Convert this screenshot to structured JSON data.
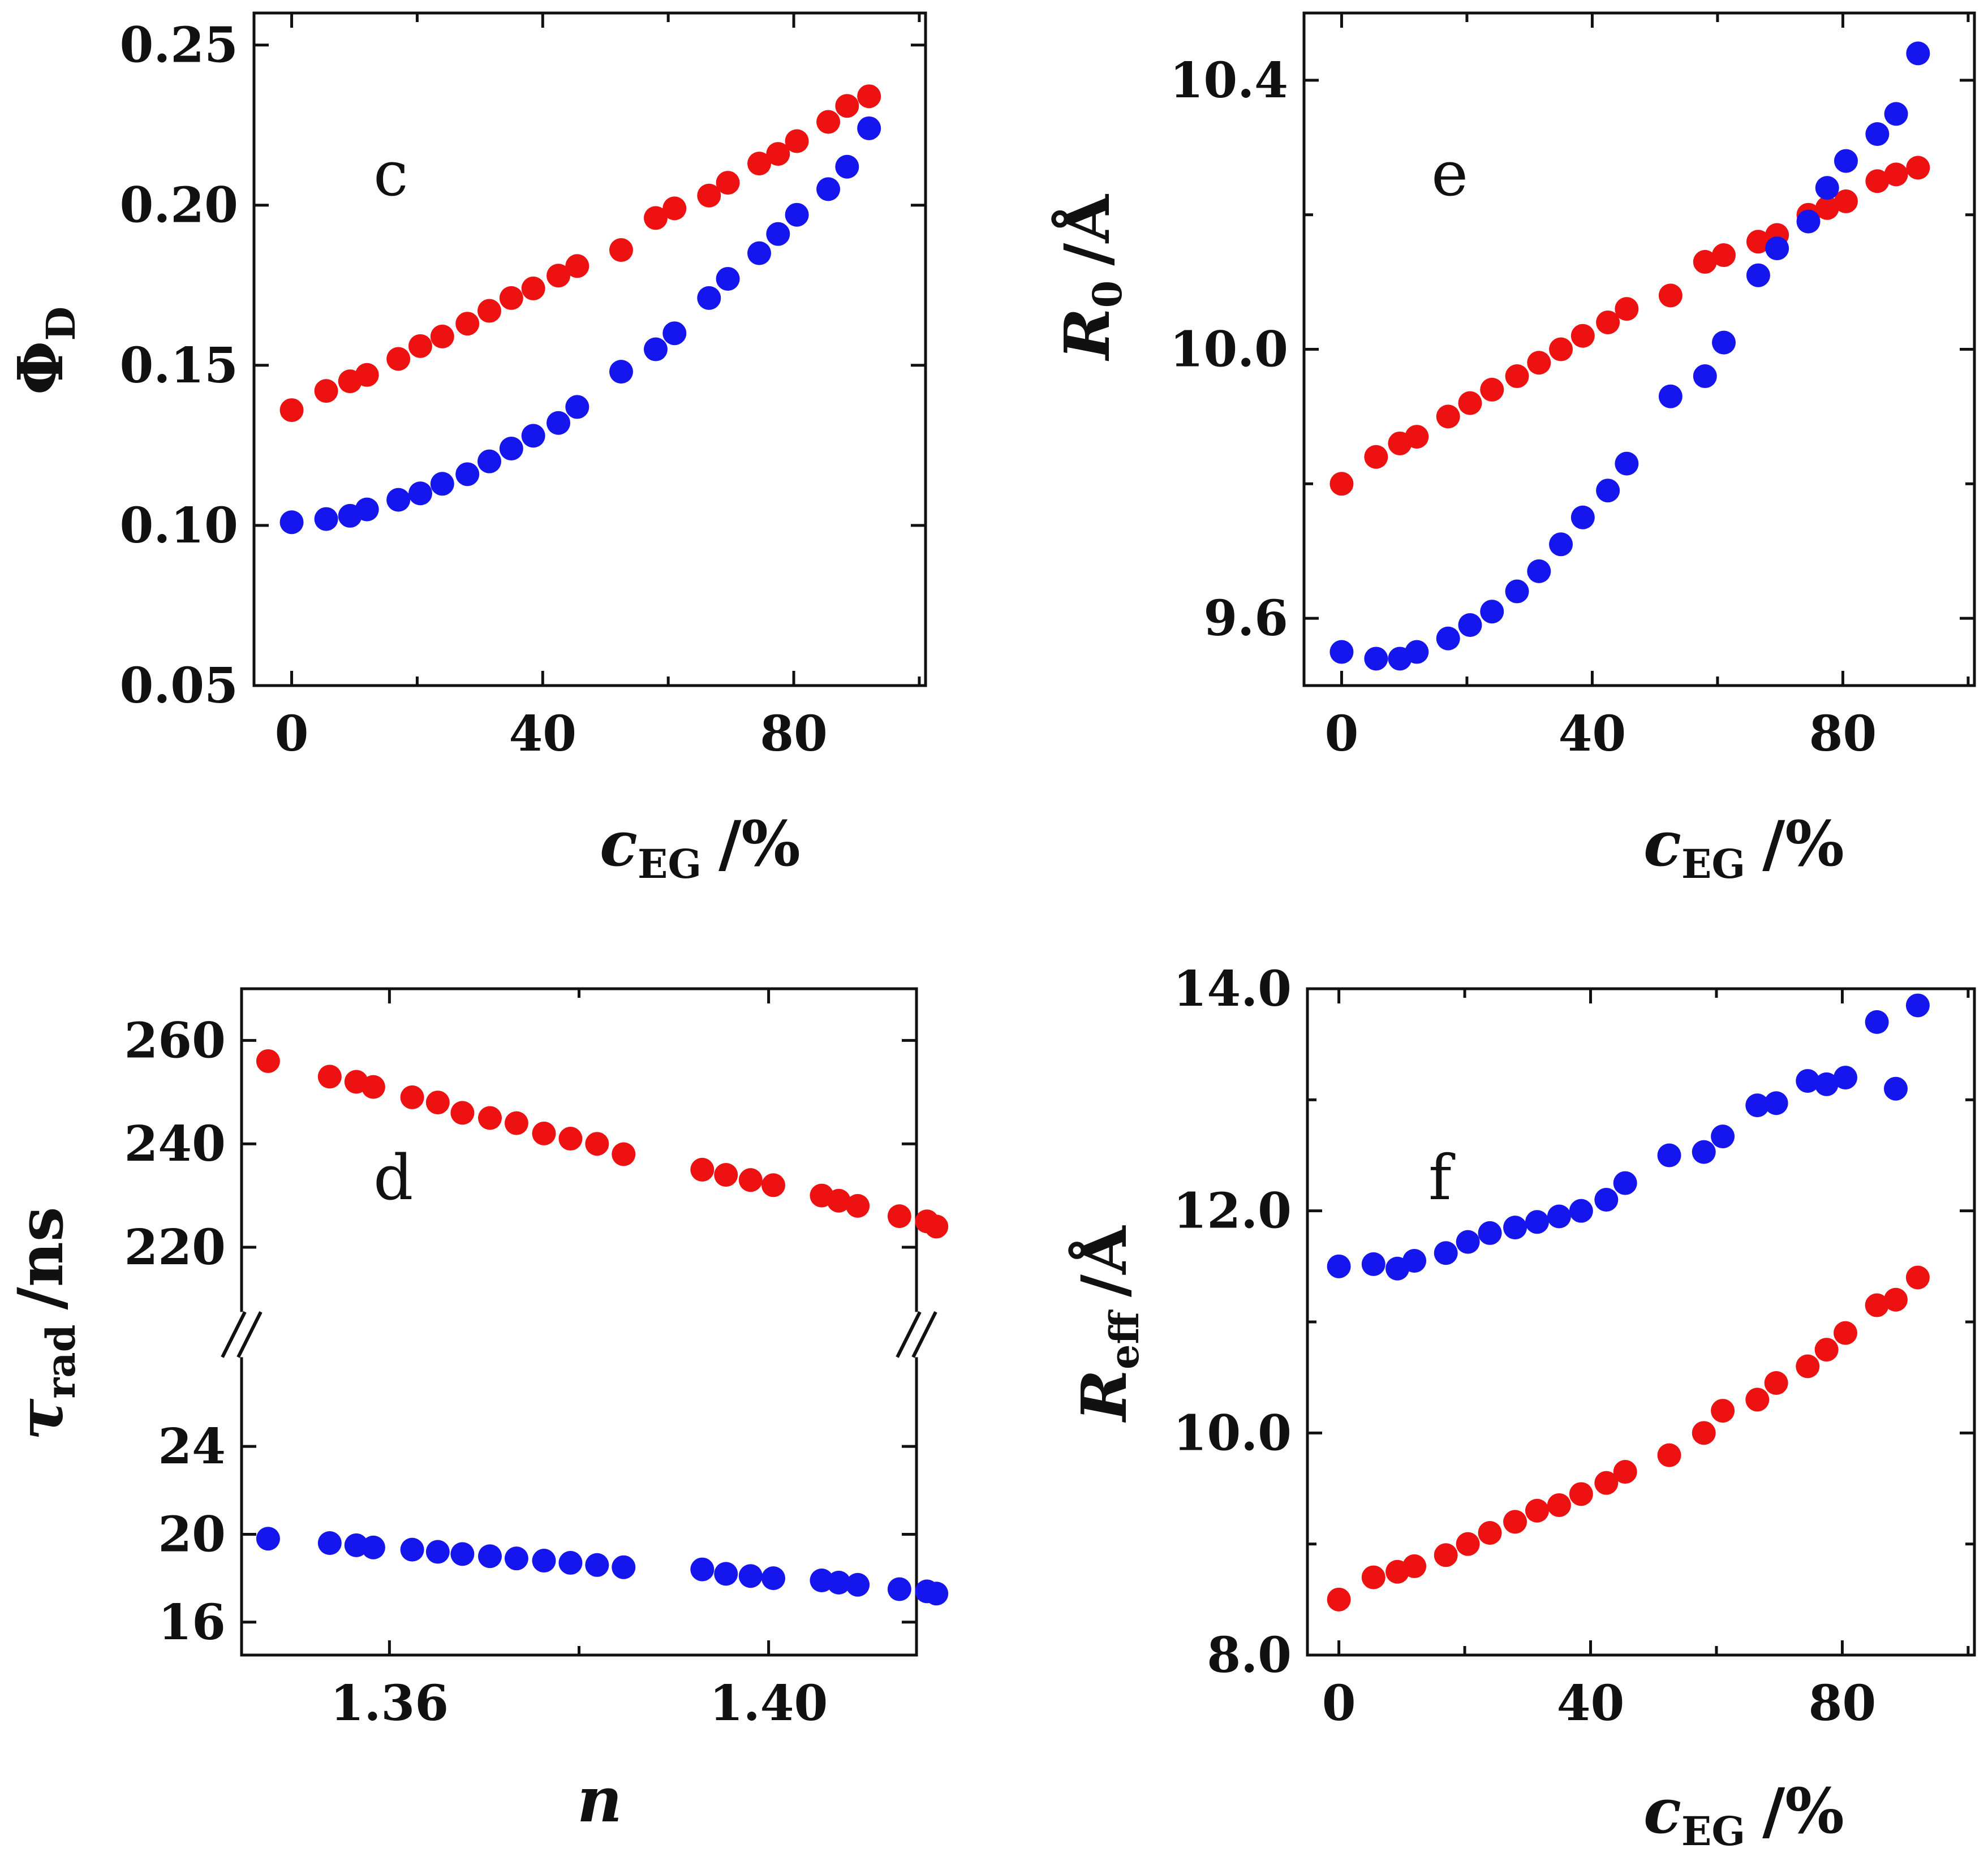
{
  "colors": {
    "series_red": "#ee1111",
    "series_blue": "#1515ee",
    "axis": "#111111"
  },
  "chart_data": [
    {
      "id": "c",
      "type": "scatter",
      "panel_label": "c",
      "xlabel": {
        "main": "c",
        "sub": "EG",
        "unit": "/%"
      },
      "ylabel": {
        "main": "Φ",
        "sub": "D",
        "unit": ""
      },
      "xlim": [
        -6,
        101
      ],
      "ylim": [
        0.05,
        0.26
      ],
      "xticks": [
        0,
        40,
        80
      ],
      "xtick_labels": [
        "0",
        "40",
        "80"
      ],
      "yticks": [
        0.05,
        0.1,
        0.15,
        0.2,
        0.25
      ],
      "ytick_labels": [
        "0.05",
        "0.10",
        "0.15",
        "0.20",
        "0.25"
      ],
      "series": [
        {
          "name": "red",
          "color": "#ee1111",
          "x": [
            0,
            5.5,
            9.3,
            12,
            17,
            20.5,
            24,
            28,
            31.5,
            35,
            38.5,
            42.5,
            45.5,
            52.5,
            58,
            61,
            66.5,
            69.5,
            74.5,
            77.5,
            80.5,
            85.5,
            88.5,
            92
          ],
          "y": [
            0.136,
            0.142,
            0.145,
            0.147,
            0.152,
            0.156,
            0.159,
            0.163,
            0.167,
            0.171,
            0.174,
            0.178,
            0.181,
            0.186,
            0.196,
            0.199,
            0.203,
            0.207,
            0.213,
            0.216,
            0.22,
            0.226,
            0.231,
            0.234
          ]
        },
        {
          "name": "blue",
          "color": "#1515ee",
          "x": [
            0,
            5.5,
            9.3,
            12,
            17,
            20.5,
            24,
            28,
            31.5,
            35,
            38.5,
            42.5,
            45.5,
            52.5,
            58,
            61,
            66.5,
            69.5,
            74.5,
            77.5,
            80.5,
            85.5,
            88.5,
            92
          ],
          "y": [
            0.101,
            0.102,
            0.103,
            0.105,
            0.108,
            0.11,
            0.113,
            0.116,
            0.12,
            0.124,
            0.128,
            0.132,
            0.137,
            0.148,
            0.155,
            0.16,
            0.171,
            0.177,
            0.185,
            0.191,
            0.197,
            0.205,
            0.212,
            0.224
          ]
        }
      ]
    },
    {
      "id": "e",
      "type": "scatter",
      "panel_label": "e",
      "xlabel": {
        "main": "c",
        "sub": "EG",
        "unit": "/%"
      },
      "ylabel": {
        "main": "R",
        "sub": "0",
        "unit": "/Å"
      },
      "xlim": [
        -6,
        101
      ],
      "ylim": [
        9.5,
        10.5
      ],
      "xticks": [
        0,
        40,
        80
      ],
      "xtick_labels": [
        "0",
        "40",
        "80"
      ],
      "yticks": [
        9.6,
        10.0,
        10.4
      ],
      "ytick_labels": [
        "9.6",
        "10.0",
        "10.4"
      ],
      "minor_yticks": [
        9.8,
        10.2
      ],
      "series": [
        {
          "name": "red",
          "color": "#ee1111",
          "x": [
            0,
            5.5,
            9.3,
            12,
            17,
            20.5,
            24,
            28,
            31.5,
            35,
            38.5,
            42.5,
            45.5,
            52.5,
            58,
            61,
            66.5,
            69.5,
            74.5,
            77.5,
            80.5,
            85.5,
            88.5,
            92
          ],
          "y": [
            9.8,
            9.84,
            9.86,
            9.87,
            9.9,
            9.92,
            9.94,
            9.96,
            9.98,
            10.0,
            10.02,
            10.04,
            10.06,
            10.08,
            10.13,
            10.14,
            10.16,
            10.17,
            10.2,
            10.21,
            10.22,
            10.25,
            10.26,
            10.27
          ]
        },
        {
          "name": "blue",
          "color": "#1515ee",
          "x": [
            0,
            5.5,
            9.3,
            12,
            17,
            20.5,
            24,
            28,
            31.5,
            35,
            38.5,
            42.5,
            45.5,
            52.5,
            58,
            61,
            66.5,
            69.5,
            74.5,
            77.5,
            80.5,
            85.5,
            88.5,
            92
          ],
          "y": [
            9.55,
            9.54,
            9.54,
            9.55,
            9.57,
            9.59,
            9.61,
            9.64,
            9.67,
            9.71,
            9.75,
            9.79,
            9.83,
            9.93,
            9.96,
            10.01,
            10.11,
            10.15,
            10.19,
            10.24,
            10.28,
            10.32,
            10.35,
            10.44
          ]
        }
      ]
    },
    {
      "id": "d",
      "type": "scatter",
      "panel_label": "d",
      "xlabel": {
        "main": "n",
        "sub": "",
        "unit": ""
      },
      "ylabel": {
        "main": "τ",
        "sub": "rad",
        "unit": "/ns"
      },
      "xlim": [
        1.3444,
        1.4156
      ],
      "ylim": [
        14.5,
        270
      ],
      "axis_break": {
        "lower_range": [
          14.5,
          27.0
        ],
        "upper_range": [
          212.0,
          270.0
        ],
        "symbol": "//"
      },
      "xticks": [
        1.36,
        1.4
      ],
      "xtick_labels": [
        "1.36",
        "1.40"
      ],
      "minor_xticks": [
        1.38
      ],
      "yticks": [
        16,
        20,
        24,
        220,
        240,
        260
      ],
      "ytick_labels": [
        "16",
        "20",
        "24",
        "220",
        "240",
        "260"
      ],
      "series": [
        {
          "name": "red",
          "color": "#ee1111",
          "x": [
            1.3472,
            1.3537,
            1.3565,
            1.3583,
            1.3624,
            1.3651,
            1.3677,
            1.3706,
            1.3734,
            1.3763,
            1.3791,
            1.3819,
            1.3847,
            1.393,
            1.3955,
            1.3981,
            1.4005,
            1.4056,
            1.4074,
            1.4094,
            1.4138,
            1.4167,
            1.4177
          ],
          "y": [
            256,
            253,
            252,
            251,
            249,
            248,
            246,
            245,
            244,
            242,
            241,
            240,
            238,
            235,
            234,
            233,
            232,
            230,
            229,
            228,
            226,
            225,
            224
          ]
        },
        {
          "name": "blue",
          "color": "#1515ee",
          "x": [
            1.3472,
            1.3537,
            1.3565,
            1.3583,
            1.3624,
            1.3651,
            1.3677,
            1.3706,
            1.3734,
            1.3763,
            1.3791,
            1.3819,
            1.3847,
            1.393,
            1.3955,
            1.3981,
            1.4005,
            1.4056,
            1.4074,
            1.4094,
            1.4138,
            1.4167,
            1.4177
          ],
          "y": [
            19.8,
            19.6,
            19.5,
            19.4,
            19.3,
            19.2,
            19.1,
            19.0,
            18.9,
            18.8,
            18.7,
            18.6,
            18.5,
            18.4,
            18.2,
            18.1,
            18.0,
            17.9,
            17.8,
            17.7,
            17.5,
            17.4,
            17.3
          ]
        }
      ]
    },
    {
      "id": "f",
      "type": "scatter",
      "panel_label": "f",
      "xlabel": {
        "main": "c",
        "sub": "EG",
        "unit": "/%"
      },
      "ylabel": {
        "main": "R",
        "sub": "eff",
        "unit": "/Å"
      },
      "xlim": [
        -5,
        101
      ],
      "ylim": [
        8.0,
        14.0
      ],
      "xticks": [
        0,
        40,
        80
      ],
      "xtick_labels": [
        "0",
        "40",
        "80"
      ],
      "yticks": [
        8.0,
        10.0,
        12.0,
        14.0
      ],
      "ytick_labels": [
        "8.0",
        "10.0",
        "12.0",
        "14.0"
      ],
      "minor_yticks": [
        9.0,
        11.0,
        13.0
      ],
      "series": [
        {
          "name": "red",
          "color": "#ee1111",
          "x": [
            0,
            5.5,
            9.3,
            12,
            17,
            20.5,
            24,
            28,
            31.5,
            35,
            38.5,
            42.5,
            45.5,
            52.5,
            58,
            61,
            66.5,
            69.5,
            74.5,
            77.5,
            80.5,
            85.5,
            88.5,
            92
          ],
          "y": [
            8.5,
            8.7,
            8.75,
            8.8,
            8.9,
            9.0,
            9.1,
            9.2,
            9.3,
            9.35,
            9.45,
            9.55,
            9.65,
            9.8,
            10.0,
            10.2,
            10.3,
            10.45,
            10.6,
            10.75,
            10.9,
            11.15,
            11.2,
            11.4
          ]
        },
        {
          "name": "blue",
          "color": "#1515ee",
          "x": [
            0,
            5.5,
            9.3,
            12,
            17,
            20.5,
            24,
            28,
            31.5,
            35,
            38.5,
            42.5,
            45.5,
            52.5,
            58,
            61,
            66.5,
            69.5,
            74.5,
            77.5,
            80.5,
            85.5,
            88.5,
            92
          ],
          "y": [
            11.5,
            11.52,
            11.48,
            11.55,
            11.62,
            11.72,
            11.8,
            11.85,
            11.9,
            11.95,
            12.0,
            12.1,
            12.25,
            12.5,
            12.53,
            12.67,
            12.95,
            12.97,
            13.17,
            13.14,
            13.2,
            13.7,
            13.1,
            13.85
          ]
        }
      ]
    }
  ]
}
